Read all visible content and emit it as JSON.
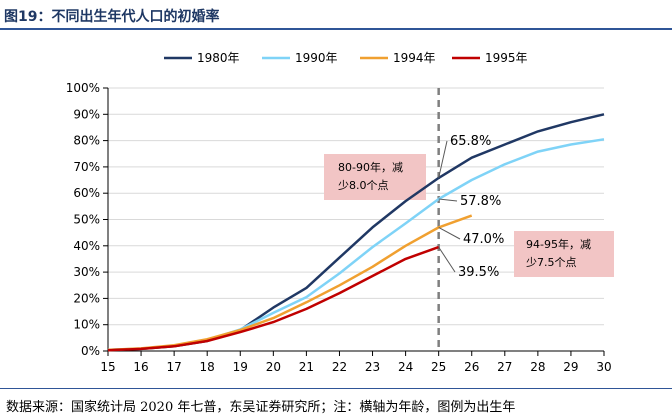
{
  "title": "图19：不同出生年代人口的初婚率",
  "source": "数据来源：国家统计局 2020 年七普，东吴证券研究所；注：横轴为年龄，图例为出生年",
  "chart_data": {
    "type": "line",
    "x": [
      15,
      16,
      17,
      18,
      19,
      20,
      21,
      22,
      23,
      24,
      25,
      26,
      27,
      28,
      29,
      30
    ],
    "y_ticks": [
      "0%",
      "10%",
      "20%",
      "30%",
      "40%",
      "50%",
      "60%",
      "70%",
      "80%",
      "90%",
      "100%"
    ],
    "ylim": [
      0,
      100
    ],
    "legend_position": "top",
    "reference_line_x": 25,
    "series": [
      {
        "name": "1980年",
        "color": "#203864",
        "values": [
          0.4,
          0.8,
          1.8,
          3.8,
          8.0,
          16.5,
          24.0,
          35.5,
          47.0,
          57.0,
          65.8,
          73.5,
          78.5,
          83.5,
          87.0,
          90.0
        ]
      },
      {
        "name": "1990年",
        "color": "#7fd3f7",
        "values": [
          0.4,
          0.9,
          2.0,
          4.2,
          8.2,
          14.5,
          20.5,
          29.5,
          39.5,
          48.5,
          57.8,
          65.0,
          71.0,
          75.8,
          78.5,
          80.5
        ]
      },
      {
        "name": "1994年",
        "color": "#f0a030",
        "values": [
          0.4,
          1.0,
          2.2,
          4.5,
          8.0,
          12.5,
          18.5,
          25.0,
          32.0,
          40.0,
          47.0,
          51.5,
          null,
          null,
          null,
          null
        ]
      },
      {
        "name": "1995年",
        "color": "#c00000",
        "values": [
          0.3,
          0.8,
          1.8,
          3.8,
          7.2,
          11.0,
          16.0,
          22.0,
          28.5,
          35.0,
          39.5,
          null,
          null,
          null,
          null,
          null
        ]
      }
    ],
    "value_labels": [
      {
        "series": 0,
        "x": 25,
        "y": 65.8,
        "text": "65.8%"
      },
      {
        "series": 1,
        "x": 25,
        "y": 57.8,
        "text": "57.8%"
      },
      {
        "series": 2,
        "x": 25,
        "y": 47.0,
        "text": "47.0%"
      },
      {
        "series": 3,
        "x": 25,
        "y": 39.5,
        "text": "39.5%"
      }
    ],
    "annotations": [
      {
        "lines": [
          "80-90年，减",
          "少8.0个点"
        ]
      },
      {
        "lines": [
          "94-95年，减",
          "少7.5个点"
        ]
      }
    ]
  }
}
